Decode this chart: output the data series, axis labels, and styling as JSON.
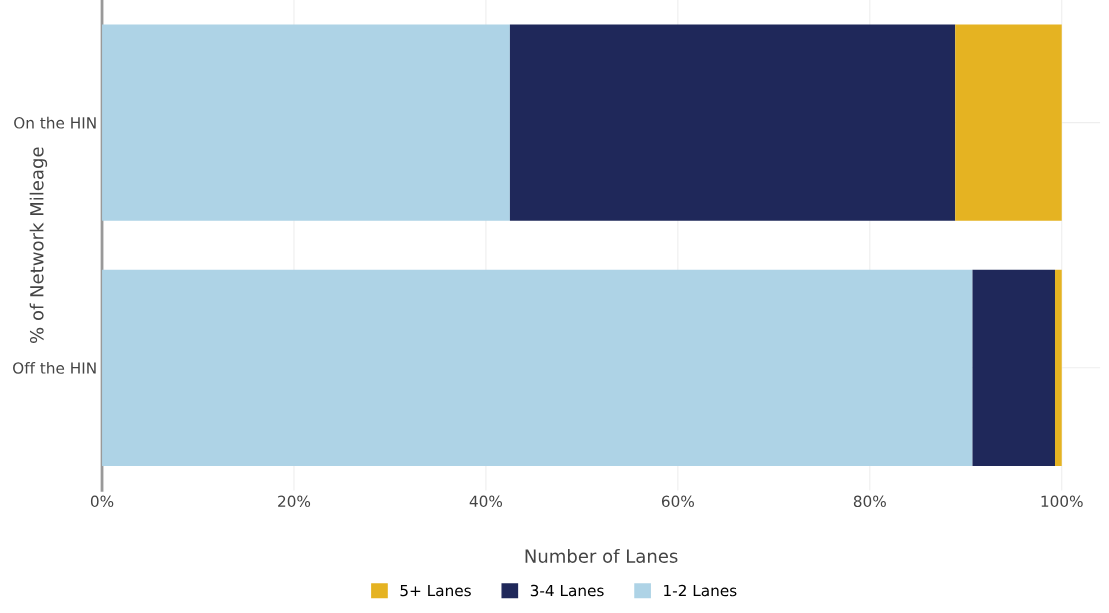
{
  "chart_data": {
    "type": "bar",
    "orientation": "horizontal",
    "stacked": true,
    "xlabel": "Number of Lanes",
    "ylabel": "% of Network Mileage",
    "categories": [
      "On the HIN",
      "Off the HIN"
    ],
    "series": [
      {
        "name": "1-2 Lanes",
        "color": "#aed3e6",
        "values": [
          42.5,
          90.7
        ]
      },
      {
        "name": "3-4 Lanes",
        "color": "#1f285a",
        "values": [
          46.4,
          8.6
        ]
      },
      {
        "name": "5+ Lanes",
        "color": "#e5b322",
        "values": [
          11.1,
          0.7
        ]
      }
    ],
    "xlim": [
      0,
      104
    ],
    "xticks": [
      {
        "value": 0,
        "label": "0%"
      },
      {
        "value": 20,
        "label": "20%"
      },
      {
        "value": 40,
        "label": "40%"
      },
      {
        "value": 60,
        "label": "60%"
      },
      {
        "value": 80,
        "label": "80%"
      },
      {
        "value": 100,
        "label": "100%"
      }
    ],
    "grid": true,
    "legend": "bottom"
  }
}
